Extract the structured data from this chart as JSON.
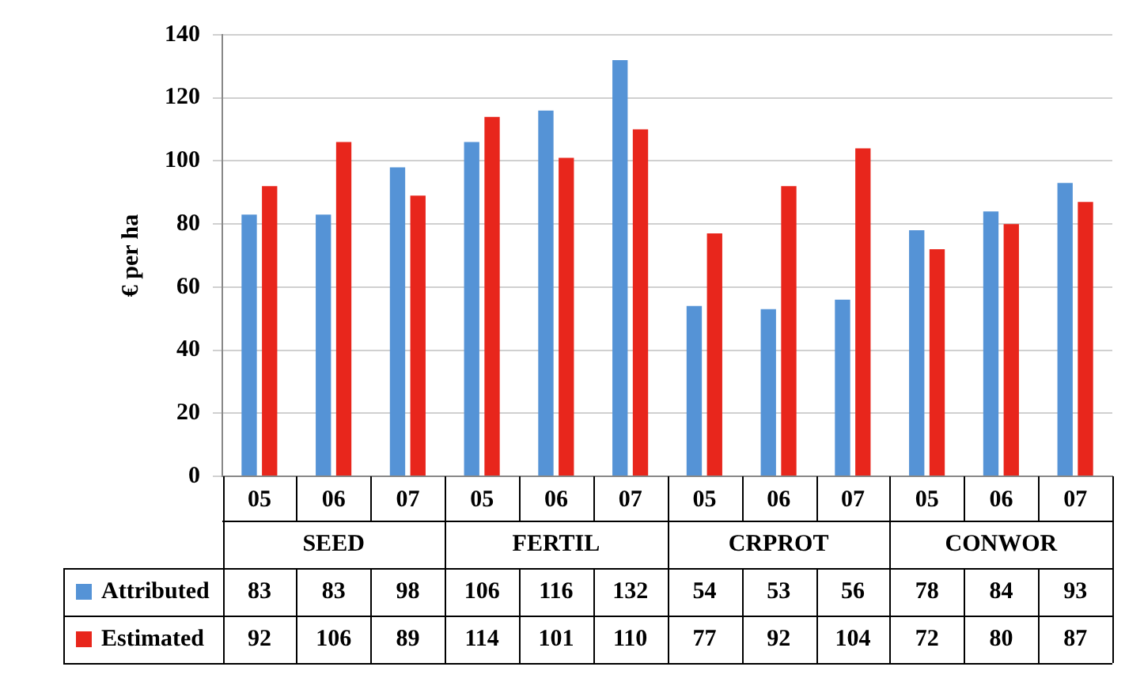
{
  "chart_data": {
    "type": "bar",
    "ylabel": "€ per ha",
    "categories": [
      "05",
      "06",
      "07",
      "05",
      "06",
      "07",
      "05",
      "06",
      "07",
      "05",
      "06",
      "07"
    ],
    "annotations": [
      "SEED",
      "FERTIL",
      "CRPROT",
      "CONWOR"
    ],
    "series": [
      {
        "name": "Attributed",
        "color": "#5593d6",
        "values": [
          83,
          83,
          98,
          106,
          116,
          132,
          54,
          53,
          56,
          78,
          84,
          93
        ]
      },
      {
        "name": "Estimated",
        "color": "#e8261c",
        "values": [
          92,
          106,
          89,
          114,
          101,
          110,
          77,
          92,
          104,
          72,
          80,
          87
        ]
      }
    ],
    "ylim": [
      0,
      140
    ],
    "yticks": [
      0,
      20,
      40,
      60,
      80,
      100,
      120,
      140
    ],
    "grid": "y",
    "legend": "bottom",
    "data_labels": true
  }
}
